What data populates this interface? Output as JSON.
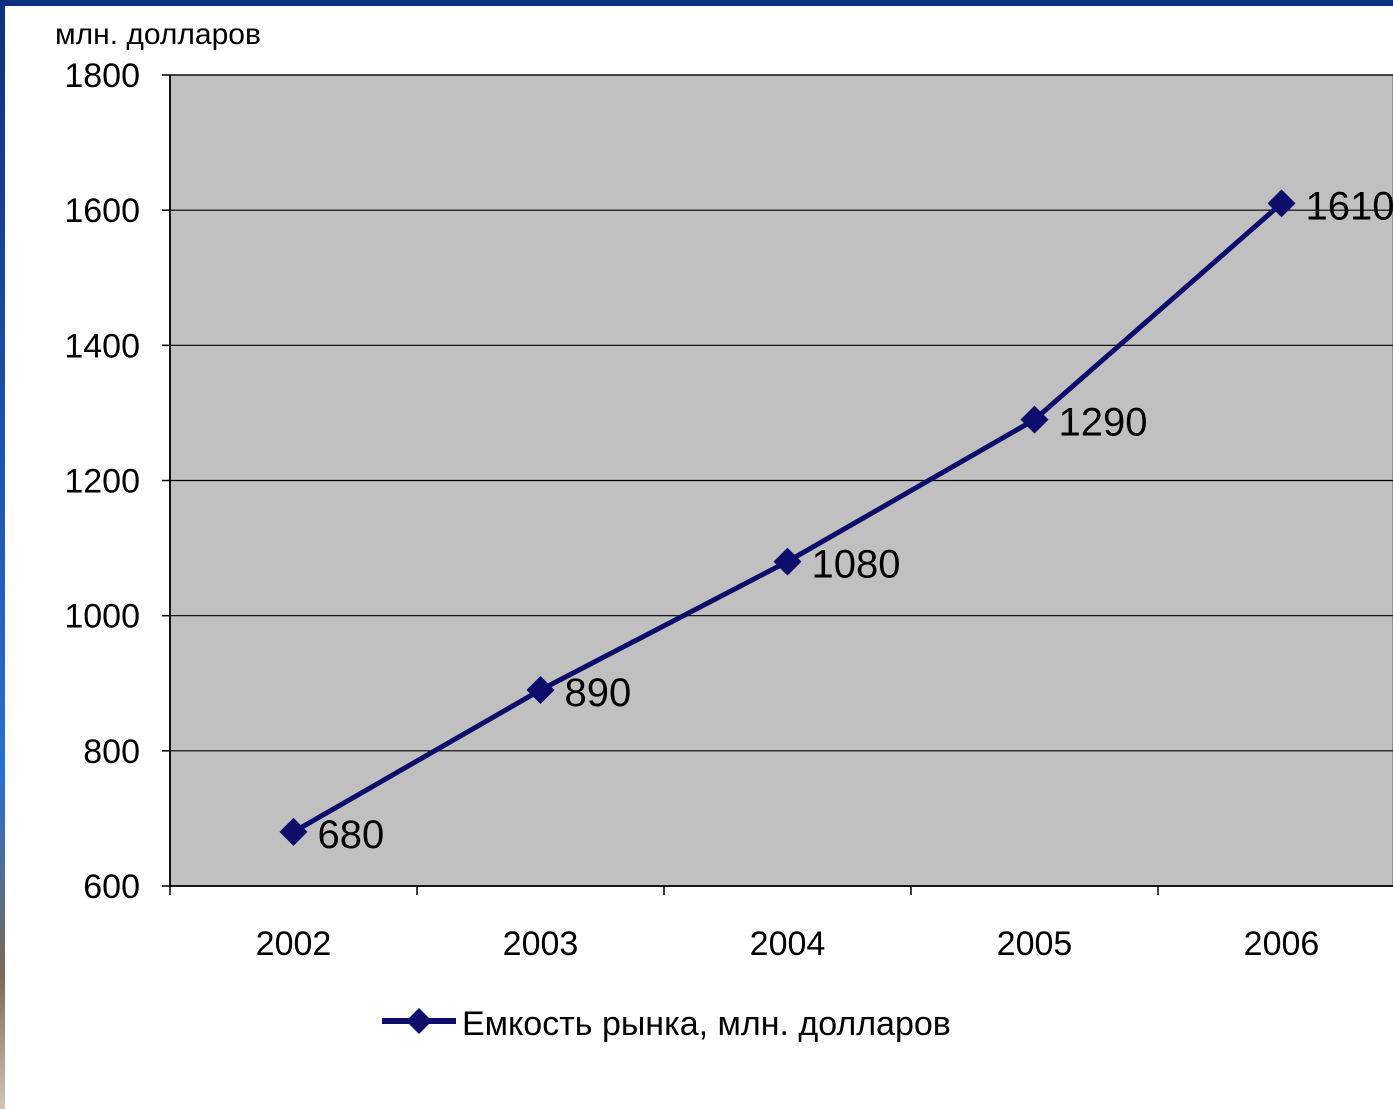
{
  "chart_data": {
    "type": "line",
    "title": "",
    "xlabel": "",
    "ylabel": "млн. долларов",
    "categories": [
      "2002",
      "2003",
      "2004",
      "2005",
      "2006"
    ],
    "series": [
      {
        "name": "Емкость рынка, млн. долларов",
        "values": [
          680,
          890,
          1080,
          1290,
          1610
        ],
        "color": "#0d0d6b",
        "marker": "diamond"
      }
    ],
    "ylim": [
      600,
      1800
    ],
    "yticks": [
      "600",
      "800",
      "1000",
      "1200",
      "1400",
      "1600",
      "1800"
    ],
    "grid": true,
    "legend": "bottom-center",
    "plot_background": "#c0c0c0"
  }
}
